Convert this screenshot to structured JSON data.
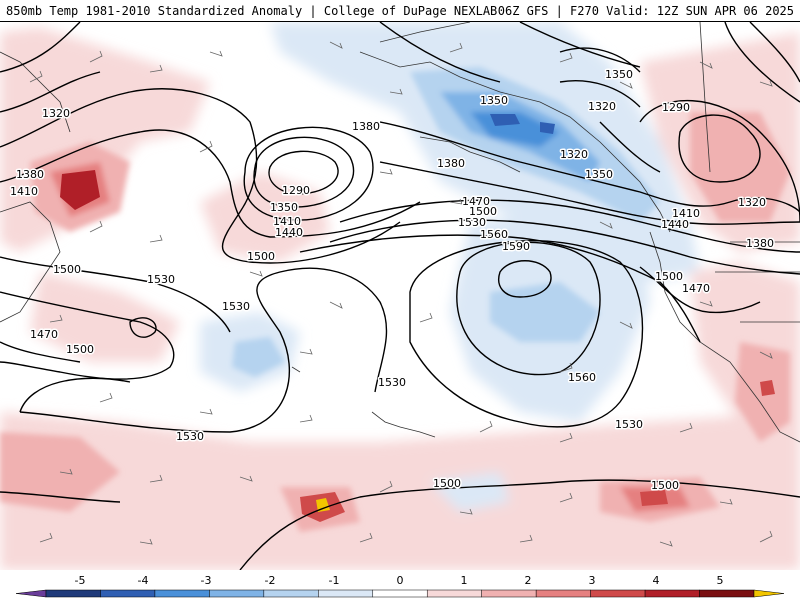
{
  "header": {
    "left_title": "850mb Temp 1981-2010 Standardized Anomaly | College of DuPage NEXLAB",
    "right_title": "06Z GFS | F270 Valid: 12Z SUN APR 06 2025"
  },
  "colors": {
    "anomaly_scale": [
      "#6a3d9a",
      "#1f3a7a",
      "#2f5fb3",
      "#4a90d9",
      "#7fb3e6",
      "#b5d3ef",
      "#dbe8f6",
      "#ffffff",
      "#f7d9d9",
      "#f0b1b1",
      "#e58080",
      "#cf4a4a",
      "#b01f28",
      "#7a0f12",
      "#f2c500"
    ],
    "contour": "#000000",
    "coastline": "#333333",
    "barbs": "#555555"
  },
  "colorbar": {
    "tick_labels": [
      "-5",
      "-4",
      "-3",
      "-2",
      "-1",
      "0",
      "1",
      "2",
      "3",
      "4",
      "5"
    ]
  },
  "contour_labels": [
    {
      "text": "1320"
    },
    {
      "text": "1380"
    },
    {
      "text": "1410"
    },
    {
      "text": "1380"
    },
    {
      "text": "1290"
    },
    {
      "text": "1350"
    },
    {
      "text": "1410"
    },
    {
      "text": "1440"
    },
    {
      "text": "1500"
    },
    {
      "text": "1350"
    },
    {
      "text": "1380"
    },
    {
      "text": "1320"
    },
    {
      "text": "1320"
    },
    {
      "text": "1350"
    },
    {
      "text": "1350"
    },
    {
      "text": "1290"
    },
    {
      "text": "1470"
    },
    {
      "text": "1500"
    },
    {
      "text": "1530"
    },
    {
      "text": "1560"
    },
    {
      "text": "1590"
    },
    {
      "text": "1410"
    },
    {
      "text": "1440"
    },
    {
      "text": "1320"
    },
    {
      "text": "1380"
    },
    {
      "text": "1500"
    },
    {
      "text": "1470"
    },
    {
      "text": "1500"
    },
    {
      "text": "1530"
    },
    {
      "text": "1530"
    },
    {
      "text": "1470"
    },
    {
      "text": "1500"
    },
    {
      "text": "1530"
    },
    {
      "text": "1560"
    },
    {
      "text": "1530"
    },
    {
      "text": "1530"
    },
    {
      "text": "1500"
    },
    {
      "text": "1500"
    }
  ]
}
